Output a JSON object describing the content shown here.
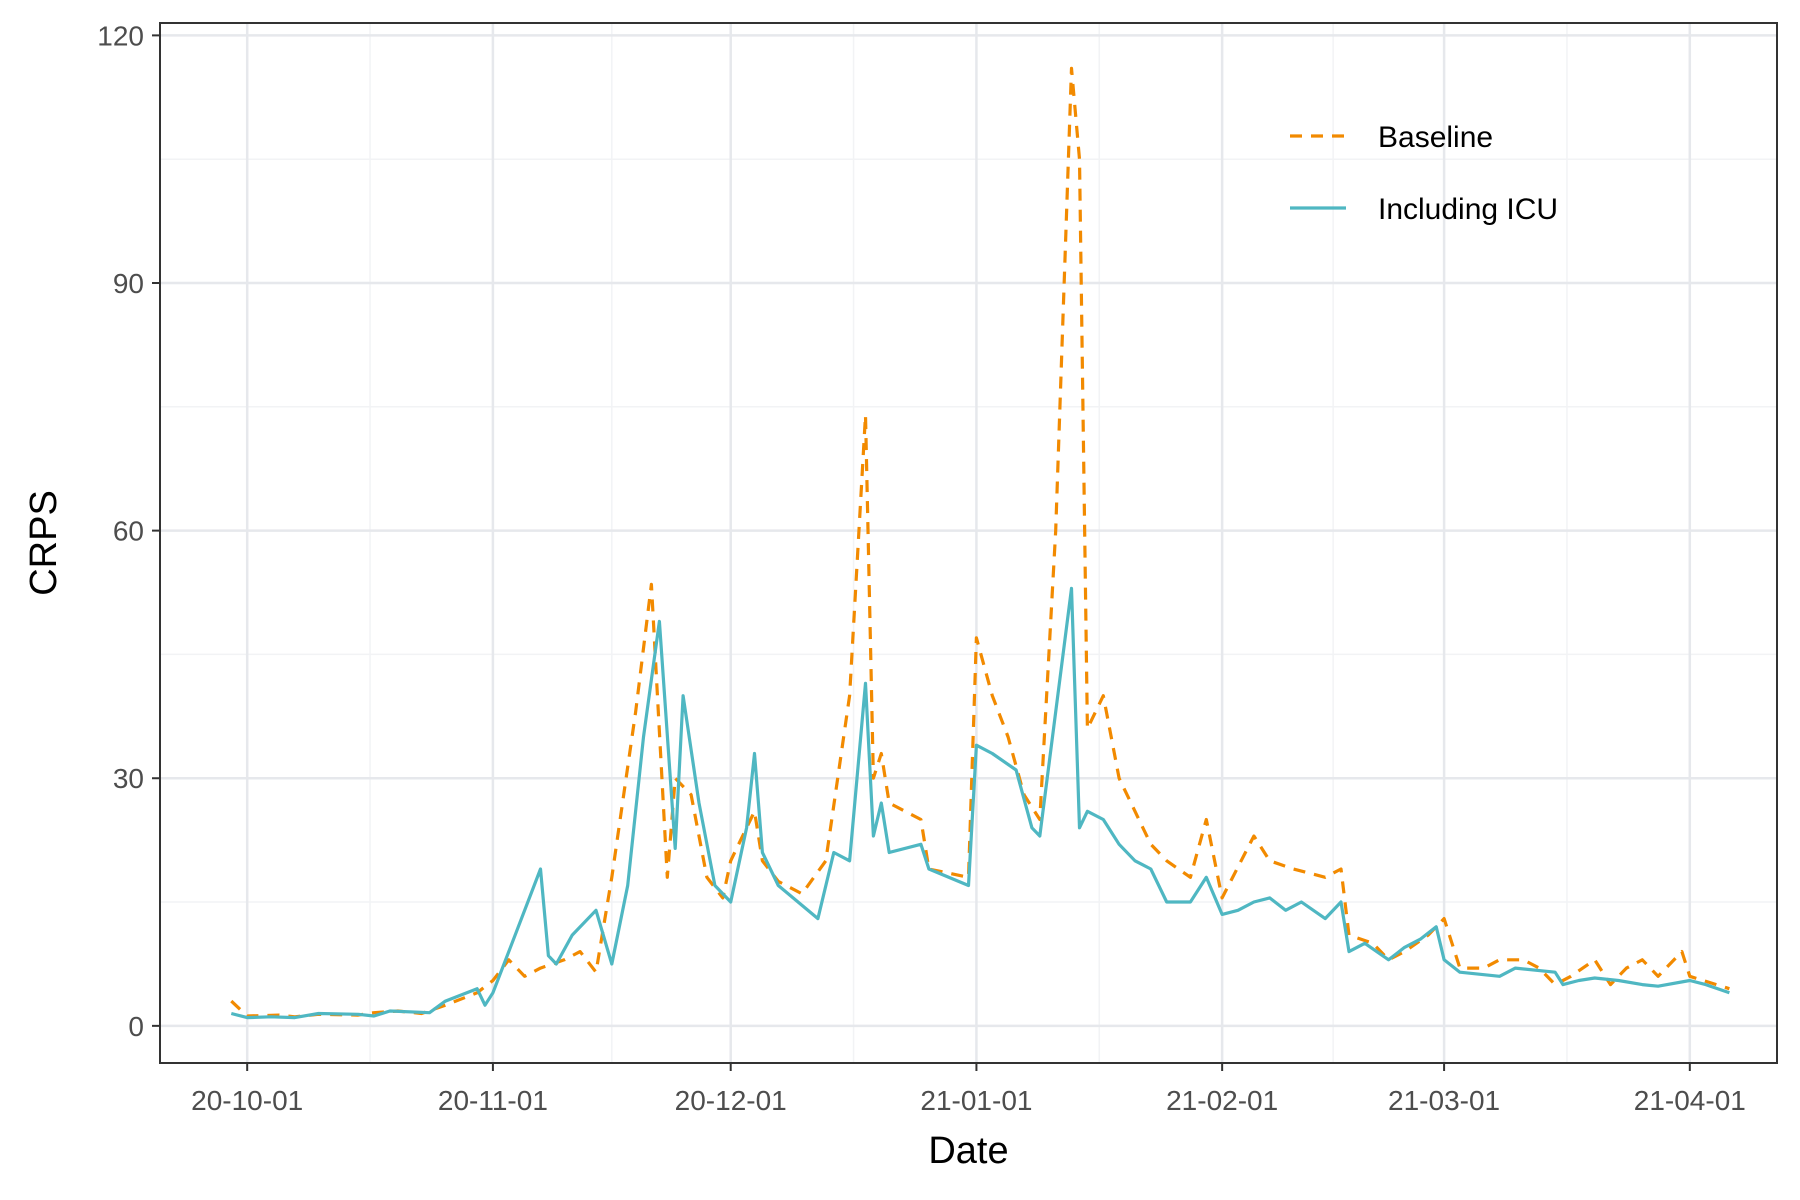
{
  "colors": {
    "baseline": "#F28A00",
    "icu": "#4FB7C2",
    "grid_major": "#E6E8EC",
    "grid_minor": "#F2F3F5",
    "panel_border": "#333333",
    "tick_text": "#4d4d4d"
  },
  "chart_data": {
    "type": "line",
    "title": "",
    "xlabel": "Date",
    "ylabel": "CRPS",
    "xlim": [
      "2020-09-20",
      "2021-04-12"
    ],
    "ylim": [
      -4.5,
      121.5
    ],
    "x_ticks": [
      {
        "date": "2020-10-01",
        "label": "20-10-01"
      },
      {
        "date": "2020-11-01",
        "label": "20-11-01"
      },
      {
        "date": "2020-12-01",
        "label": "20-12-01"
      },
      {
        "date": "2021-01-01",
        "label": "21-01-01"
      },
      {
        "date": "2021-02-01",
        "label": "21-02-01"
      },
      {
        "date": "2021-03-01",
        "label": "21-03-01"
      },
      {
        "date": "2021-04-01",
        "label": "21-04-01"
      }
    ],
    "y_ticks": [
      0,
      30,
      60,
      90,
      120
    ],
    "grid": true,
    "legend": {
      "position": "top-right",
      "inside": true
    },
    "series": [
      {
        "name": "Baseline",
        "key": "baseline",
        "style": "dashed",
        "points": [
          [
            "2020-09-29",
            3.0
          ],
          [
            "2020-10-01",
            1.2
          ],
          [
            "2020-10-05",
            1.3
          ],
          [
            "2020-10-07",
            1.1
          ],
          [
            "2020-10-10",
            1.4
          ],
          [
            "2020-10-15",
            1.3
          ],
          [
            "2020-10-17",
            1.6
          ],
          [
            "2020-10-20",
            1.8
          ],
          [
            "2020-10-23",
            1.5
          ],
          [
            "2020-10-26",
            2.5
          ],
          [
            "2020-10-30",
            4.0
          ],
          [
            "2020-11-01",
            5.5
          ],
          [
            "2020-11-03",
            8.0
          ],
          [
            "2020-11-05",
            6.0
          ],
          [
            "2020-11-07",
            7.0
          ],
          [
            "2020-11-10",
            8.0
          ],
          [
            "2020-11-12",
            9.0
          ],
          [
            "2020-11-14",
            6.5
          ],
          [
            "2020-11-16",
            18.0
          ],
          [
            "2020-11-19",
            38.0
          ],
          [
            "2020-11-21",
            53.5
          ],
          [
            "2020-11-23",
            18.0
          ],
          [
            "2020-11-24",
            30.0
          ],
          [
            "2020-11-26",
            28.0
          ],
          [
            "2020-11-28",
            18.0
          ],
          [
            "2020-11-30",
            15.5
          ],
          [
            "2020-12-01",
            20.0
          ],
          [
            "2020-12-04",
            26.0
          ],
          [
            "2020-12-05",
            20.0
          ],
          [
            "2020-12-07",
            17.5
          ],
          [
            "2020-12-10",
            16.0
          ],
          [
            "2020-12-13",
            20.0
          ],
          [
            "2020-12-16",
            40.0
          ],
          [
            "2020-12-18",
            74.0
          ],
          [
            "2020-12-19",
            30.0
          ],
          [
            "2020-12-20",
            33.0
          ],
          [
            "2020-12-21",
            27.0
          ],
          [
            "2020-12-25",
            25.0
          ],
          [
            "2020-12-26",
            19.0
          ],
          [
            "2020-12-31",
            18.0
          ],
          [
            "2021-01-01",
            47.0
          ],
          [
            "2021-01-03",
            40.0
          ],
          [
            "2021-01-05",
            35.0
          ],
          [
            "2021-01-07",
            28.0
          ],
          [
            "2021-01-09",
            25.0
          ],
          [
            "2021-01-11",
            60.0
          ],
          [
            "2021-01-13",
            116.0
          ],
          [
            "2021-01-14",
            105.0
          ],
          [
            "2021-01-15",
            36.0
          ],
          [
            "2021-01-17",
            40.0
          ],
          [
            "2021-01-19",
            30.0
          ],
          [
            "2021-01-21",
            26.0
          ],
          [
            "2021-01-23",
            22.0
          ],
          [
            "2021-01-25",
            20.0
          ],
          [
            "2021-01-28",
            18.0
          ],
          [
            "2021-01-30",
            25.0
          ],
          [
            "2021-02-01",
            15.5
          ],
          [
            "2021-02-05",
            23.0
          ],
          [
            "2021-02-07",
            20.0
          ],
          [
            "2021-02-10",
            19.0
          ],
          [
            "2021-02-14",
            18.0
          ],
          [
            "2021-02-16",
            19.0
          ],
          [
            "2021-02-17",
            11.0
          ],
          [
            "2021-02-20",
            10.0
          ],
          [
            "2021-02-22",
            8.0
          ],
          [
            "2021-02-24",
            9.0
          ],
          [
            "2021-02-27",
            11.0
          ],
          [
            "2021-03-01",
            13.0
          ],
          [
            "2021-03-03",
            7.0
          ],
          [
            "2021-03-06",
            7.0
          ],
          [
            "2021-03-08",
            8.0
          ],
          [
            "2021-03-11",
            8.0
          ],
          [
            "2021-03-13",
            7.0
          ],
          [
            "2021-03-15",
            5.0
          ],
          [
            "2021-03-17",
            6.0
          ],
          [
            "2021-03-20",
            8.0
          ],
          [
            "2021-03-22",
            5.0
          ],
          [
            "2021-03-24",
            7.0
          ],
          [
            "2021-03-26",
            8.0
          ],
          [
            "2021-03-28",
            6.0
          ],
          [
            "2021-03-31",
            9.0
          ],
          [
            "2021-04-01",
            6.0
          ],
          [
            "2021-04-06",
            4.5
          ]
        ]
      },
      {
        "name": "Including ICU",
        "key": "icu",
        "style": "solid",
        "points": [
          [
            "2020-09-29",
            1.5
          ],
          [
            "2020-10-01",
            1.0
          ],
          [
            "2020-10-04",
            1.1
          ],
          [
            "2020-10-07",
            1.0
          ],
          [
            "2020-10-10",
            1.5
          ],
          [
            "2020-10-15",
            1.4
          ],
          [
            "2020-10-17",
            1.2
          ],
          [
            "2020-10-19",
            1.8
          ],
          [
            "2020-10-24",
            1.6
          ],
          [
            "2020-10-26",
            3.0
          ],
          [
            "2020-10-30",
            4.5
          ],
          [
            "2020-10-31",
            2.5
          ],
          [
            "2020-11-01",
            4.0
          ],
          [
            "2020-11-03",
            9.0
          ],
          [
            "2020-11-07",
            19.0
          ],
          [
            "2020-11-08",
            8.5
          ],
          [
            "2020-11-09",
            7.5
          ],
          [
            "2020-11-11",
            11.0
          ],
          [
            "2020-11-14",
            14.0
          ],
          [
            "2020-11-16",
            7.5
          ],
          [
            "2020-11-18",
            17.0
          ],
          [
            "2020-11-20",
            35.0
          ],
          [
            "2020-11-22",
            49.0
          ],
          [
            "2020-11-24",
            21.5
          ],
          [
            "2020-11-25",
            40.0
          ],
          [
            "2020-11-27",
            27.0
          ],
          [
            "2020-11-29",
            17.0
          ],
          [
            "2020-12-01",
            15.0
          ],
          [
            "2020-12-03",
            24.0
          ],
          [
            "2020-12-04",
            33.0
          ],
          [
            "2020-12-05",
            21.0
          ],
          [
            "2020-12-07",
            17.0
          ],
          [
            "2020-12-12",
            13.0
          ],
          [
            "2020-12-14",
            21.0
          ],
          [
            "2020-12-16",
            20.0
          ],
          [
            "2020-12-18",
            41.5
          ],
          [
            "2020-12-19",
            23.0
          ],
          [
            "2020-12-20",
            27.0
          ],
          [
            "2020-12-21",
            21.0
          ],
          [
            "2020-12-25",
            22.0
          ],
          [
            "2020-12-26",
            19.0
          ],
          [
            "2020-12-31",
            17.0
          ],
          [
            "2021-01-01",
            34.0
          ],
          [
            "2021-01-03",
            33.0
          ],
          [
            "2021-01-06",
            31.0
          ],
          [
            "2021-01-08",
            24.0
          ],
          [
            "2021-01-09",
            23.0
          ],
          [
            "2021-01-13",
            53.0
          ],
          [
            "2021-01-14",
            24.0
          ],
          [
            "2021-01-15",
            26.0
          ],
          [
            "2021-01-17",
            25.0
          ],
          [
            "2021-01-19",
            22.0
          ],
          [
            "2021-01-21",
            20.0
          ],
          [
            "2021-01-23",
            19.0
          ],
          [
            "2021-01-25",
            15.0
          ],
          [
            "2021-01-28",
            15.0
          ],
          [
            "2021-01-30",
            18.0
          ],
          [
            "2021-02-01",
            13.5
          ],
          [
            "2021-02-03",
            14.0
          ],
          [
            "2021-02-05",
            15.0
          ],
          [
            "2021-02-07",
            15.5
          ],
          [
            "2021-02-09",
            14.0
          ],
          [
            "2021-02-11",
            15.0
          ],
          [
            "2021-02-14",
            13.0
          ],
          [
            "2021-02-16",
            15.0
          ],
          [
            "2021-02-17",
            9.0
          ],
          [
            "2021-02-19",
            10.0
          ],
          [
            "2021-02-22",
            8.0
          ],
          [
            "2021-02-24",
            9.5
          ],
          [
            "2021-02-26",
            10.5
          ],
          [
            "2021-02-28",
            12.0
          ],
          [
            "2021-03-01",
            8.0
          ],
          [
            "2021-03-03",
            6.5
          ],
          [
            "2021-03-08",
            6.0
          ],
          [
            "2021-03-10",
            7.0
          ],
          [
            "2021-03-15",
            6.5
          ],
          [
            "2021-03-16",
            5.0
          ],
          [
            "2021-03-18",
            5.5
          ],
          [
            "2021-03-20",
            5.8
          ],
          [
            "2021-03-23",
            5.5
          ],
          [
            "2021-03-26",
            5.0
          ],
          [
            "2021-03-28",
            4.8
          ],
          [
            "2021-04-01",
            5.5
          ],
          [
            "2021-04-03",
            5.0
          ],
          [
            "2021-04-06",
            4.0
          ]
        ]
      }
    ]
  }
}
